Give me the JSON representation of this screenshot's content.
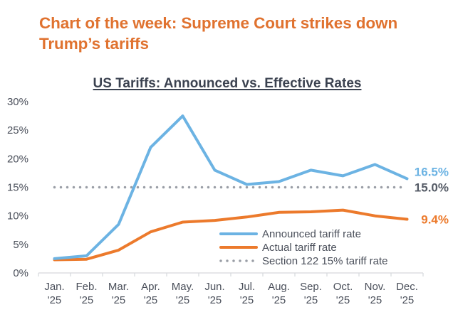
{
  "headline": {
    "line1": "Chart of the week: Supreme Court strikes down",
    "line2": "Trump’s tariffs"
  },
  "colors": {
    "headline": "#e0722f",
    "announced": "#6cb3e3",
    "actual": "#ec7a2c",
    "section122": "#9a9ea6",
    "axis_text": "#4a4f5a",
    "title_text": "#3b4250"
  },
  "chart_data": {
    "type": "line",
    "title": "US Tariffs: Announced vs. Effective Rates",
    "xlabel": "",
    "ylabel": "",
    "ylim": [
      0,
      30
    ],
    "yticks": [
      0,
      5,
      10,
      15,
      20,
      25,
      30
    ],
    "ytick_labels": [
      "0%",
      "5%",
      "10%",
      "15%",
      "20%",
      "25%",
      "30%"
    ],
    "categories": [
      [
        "Jan.",
        "'25"
      ],
      [
        "Feb.",
        "'25"
      ],
      [
        "Mar.",
        "'25"
      ],
      [
        "Apr.",
        "'25"
      ],
      [
        "May.",
        "'25"
      ],
      [
        "Jun.",
        "'25"
      ],
      [
        "Jul.",
        "'25"
      ],
      [
        "Aug.",
        "'25"
      ],
      [
        "Sep.",
        "'25"
      ],
      [
        "Oct.",
        "'25"
      ],
      [
        "Nov.",
        "'25"
      ],
      [
        "Dec.",
        "'25"
      ]
    ],
    "grid": false,
    "legend_position": "bottom-right",
    "series": [
      {
        "name": "Announced tariff rate",
        "style": "solid",
        "color_key": "announced",
        "values": [
          2.5,
          3.0,
          8.5,
          22.0,
          27.5,
          18.0,
          15.5,
          16.0,
          18.0,
          17.0,
          19.0,
          16.5
        ],
        "end_label": "16.5%"
      },
      {
        "name": "Actual tariff rate",
        "style": "solid",
        "color_key": "actual",
        "values": [
          2.3,
          2.4,
          4.0,
          7.2,
          8.9,
          9.2,
          9.8,
          10.6,
          10.7,
          11.0,
          10.0,
          9.4
        ],
        "end_label": "9.4%"
      },
      {
        "name": "Section 122 15% tariff rate",
        "style": "dotted",
        "color_key": "section122",
        "values": [
          15,
          15,
          15,
          15,
          15,
          15,
          15,
          15,
          15,
          15,
          15,
          15
        ],
        "end_label": "15.0%"
      }
    ]
  }
}
